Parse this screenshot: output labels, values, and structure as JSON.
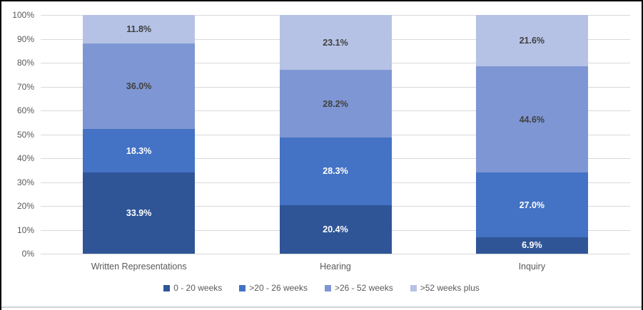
{
  "chart_data": {
    "type": "bar",
    "stacked": true,
    "percent_stacked": true,
    "title": "",
    "xlabel": "",
    "ylabel": "",
    "categories": [
      "Written Representations",
      "Hearing",
      "Inquiry"
    ],
    "series": [
      {
        "name": "0 - 20 weeks",
        "color": "#2F5597",
        "label_color": "#FFFFFF",
        "values": [
          33.9,
          20.4,
          6.9
        ]
      },
      {
        "name": ">20 - 26 weeks",
        "color": "#4472C4",
        "label_color": "#FFFFFF",
        "values": [
          18.3,
          28.3,
          27.0
        ]
      },
      {
        "name": ">26 - 52 weeks",
        "color": "#7E96D3",
        "label_color": "#404040",
        "values": [
          36.0,
          28.2,
          44.6
        ]
      },
      {
        "name": ">52 weeks plus",
        "color": "#B5C2E5",
        "label_color": "#404040",
        "values": [
          11.8,
          23.1,
          21.6
        ]
      }
    ],
    "value_suffix": "%",
    "value_decimals": 1,
    "y_axis": {
      "min": 0,
      "max": 100,
      "step": 10,
      "tick_labels": [
        "0%",
        "10%",
        "20%",
        "30%",
        "40%",
        "50%",
        "60%",
        "70%",
        "80%",
        "90%",
        "100%"
      ]
    },
    "grid": true,
    "legend_position": "bottom"
  },
  "colors": {
    "background": "#FFFFFF",
    "gridline": "#D9D9D9",
    "axis_text": "#595959",
    "outer_border": "#000000",
    "chart_border": "#D2D2D2"
  }
}
